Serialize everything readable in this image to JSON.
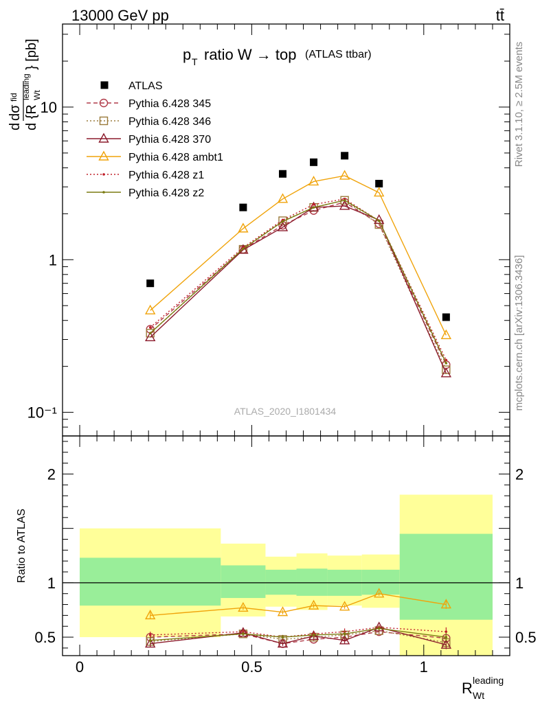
{
  "header": {
    "energy_label": "13000 GeV pp",
    "process_label": "tt̄"
  },
  "side_labels": {
    "rivet": "Rivet 3.1.10, ≥ 2.5M events",
    "source": "mcplots.cern.ch [arXiv:1306.3436]"
  },
  "chart_data": [
    {
      "type": "line",
      "panel": "main",
      "title": "p_T ratio W → top (ATLAS ttbar)",
      "ylabel": "dσ/dR_Wt^leading [pb]",
      "yscale": "log",
      "ylim": [
        0.07,
        35
      ],
      "xlim": [
        -0.05,
        1.25
      ],
      "yticks": [
        {
          "v": 0.1,
          "label": "10⁻¹"
        },
        {
          "v": 1,
          "label": "1"
        },
        {
          "v": 10,
          "label": "10"
        }
      ],
      "watermark": "ATLAS_2020_I1801434",
      "legend_position": "top-left",
      "x": [
        0.205,
        0.475,
        0.59,
        0.68,
        0.77,
        0.87,
        1.065
      ],
      "series": [
        {
          "name": "ATLAS",
          "style": "data",
          "color": "#000000",
          "values": [
            0.7,
            2.2,
            3.65,
            4.35,
            4.8,
            3.15,
            0.42
          ]
        },
        {
          "name": "Pythia 6.428 345",
          "style": "dashed",
          "marker": "circle",
          "color": "#b03a48",
          "values": [
            0.35,
            1.17,
            1.68,
            2.1,
            2.38,
            1.72,
            0.205
          ]
        },
        {
          "name": "Pythia 6.428 346",
          "style": "dotted",
          "marker": "square",
          "color": "#9a7a3a",
          "values": [
            0.33,
            1.17,
            1.8,
            2.2,
            2.45,
            1.7,
            0.19
          ]
        },
        {
          "name": "Pythia 6.428 370",
          "style": "solid",
          "marker": "triangle",
          "color": "#8b1a2b",
          "values": [
            0.31,
            1.16,
            1.63,
            2.2,
            2.25,
            1.82,
            0.18
          ]
        },
        {
          "name": "Pythia 6.428 ambt1",
          "style": "solid",
          "marker": "triangle",
          "color": "#f0a30a",
          "values": [
            0.465,
            1.6,
            2.5,
            3.25,
            3.55,
            2.75,
            0.32
          ]
        },
        {
          "name": "Pythia 6.428 z1",
          "style": "dotted",
          "marker": "dot",
          "color": "#c0202a",
          "values": [
            0.36,
            1.2,
            1.82,
            2.3,
            2.5,
            1.8,
            0.22
          ]
        },
        {
          "name": "Pythia 6.428 z2",
          "style": "solid",
          "marker": "dot",
          "color": "#7a7a10",
          "values": [
            0.33,
            1.18,
            1.78,
            2.2,
            2.45,
            1.8,
            0.21
          ]
        }
      ]
    },
    {
      "type": "line",
      "panel": "ratio",
      "ylabel": "Ratio to ATLAS",
      "xlabel": "R_Wt^leading",
      "ylim": [
        0.33,
        2.35
      ],
      "xlim": [
        -0.05,
        1.25
      ],
      "xticks": [
        0,
        0.5,
        1
      ],
      "yticks": [
        0.5,
        1,
        2
      ],
      "bins": [
        {
          "lo": 0.0,
          "hi": 0.41,
          "stat_lo": 0.79,
          "stat_hi": 1.23,
          "tot_lo": 0.5,
          "tot_hi": 1.5
        },
        {
          "lo": 0.41,
          "hi": 0.54,
          "stat_lo": 0.86,
          "stat_hi": 1.16,
          "tot_lo": 0.69,
          "tot_hi": 1.36
        },
        {
          "lo": 0.54,
          "hi": 0.63,
          "stat_lo": 0.89,
          "stat_hi": 1.12,
          "tot_lo": 0.78,
          "tot_hi": 1.24
        },
        {
          "lo": 0.63,
          "hi": 0.72,
          "stat_lo": 0.88,
          "stat_hi": 1.13,
          "tot_lo": 0.75,
          "tot_hi": 1.27
        },
        {
          "lo": 0.72,
          "hi": 0.82,
          "stat_lo": 0.88,
          "stat_hi": 1.12,
          "tot_lo": 0.79,
          "tot_hi": 1.25
        },
        {
          "lo": 0.82,
          "hi": 0.93,
          "stat_lo": 0.89,
          "stat_hi": 1.12,
          "tot_lo": 0.77,
          "tot_hi": 1.26
        },
        {
          "lo": 0.93,
          "hi": 1.2,
          "stat_lo": 0.66,
          "stat_hi": 1.45,
          "tot_lo": 0.33,
          "tot_hi": 1.81
        }
      ],
      "x": [
        0.205,
        0.475,
        0.59,
        0.68,
        0.77,
        0.87,
        1.065
      ],
      "series": [
        {
          "name": "Pythia 6.428 345",
          "values": [
            0.5,
            0.53,
            0.44,
            0.48,
            0.5,
            0.55,
            0.49
          ],
          "err": [
            0.03,
            0.02,
            0.02,
            0.02,
            0.03,
            0.02,
            0.04
          ]
        },
        {
          "name": "Pythia 6.428 346",
          "values": [
            0.46,
            0.53,
            0.48,
            0.5,
            0.52,
            0.56,
            0.45
          ],
          "err": [
            0.03,
            0.02,
            0.02,
            0.02,
            0.03,
            0.02,
            0.04
          ]
        },
        {
          "name": "Pythia 6.428 370",
          "values": [
            0.44,
            0.54,
            0.44,
            0.51,
            0.47,
            0.59,
            0.43
          ],
          "err": [
            0.03,
            0.02,
            0.02,
            0.02,
            0.03,
            0.02,
            0.04
          ]
        },
        {
          "name": "Pythia 6.428 ambt1",
          "values": [
            0.7,
            0.77,
            0.73,
            0.79,
            0.78,
            0.9,
            0.8
          ],
          "err": [
            0.03,
            0.02,
            0.02,
            0.02,
            0.02,
            0.02,
            0.04
          ]
        },
        {
          "name": "Pythia 6.428 z1",
          "values": [
            0.52,
            0.55,
            0.5,
            0.53,
            0.55,
            0.59,
            0.55
          ],
          "err": [
            0.03,
            0.02,
            0.02,
            0.02,
            0.03,
            0.02,
            0.04
          ]
        },
        {
          "name": "Pythia 6.428 z2",
          "values": [
            0.47,
            0.53,
            0.5,
            0.52,
            0.53,
            0.58,
            0.5
          ],
          "err": [
            0.03,
            0.02,
            0.02,
            0.02,
            0.03,
            0.02,
            0.04
          ]
        }
      ]
    }
  ]
}
